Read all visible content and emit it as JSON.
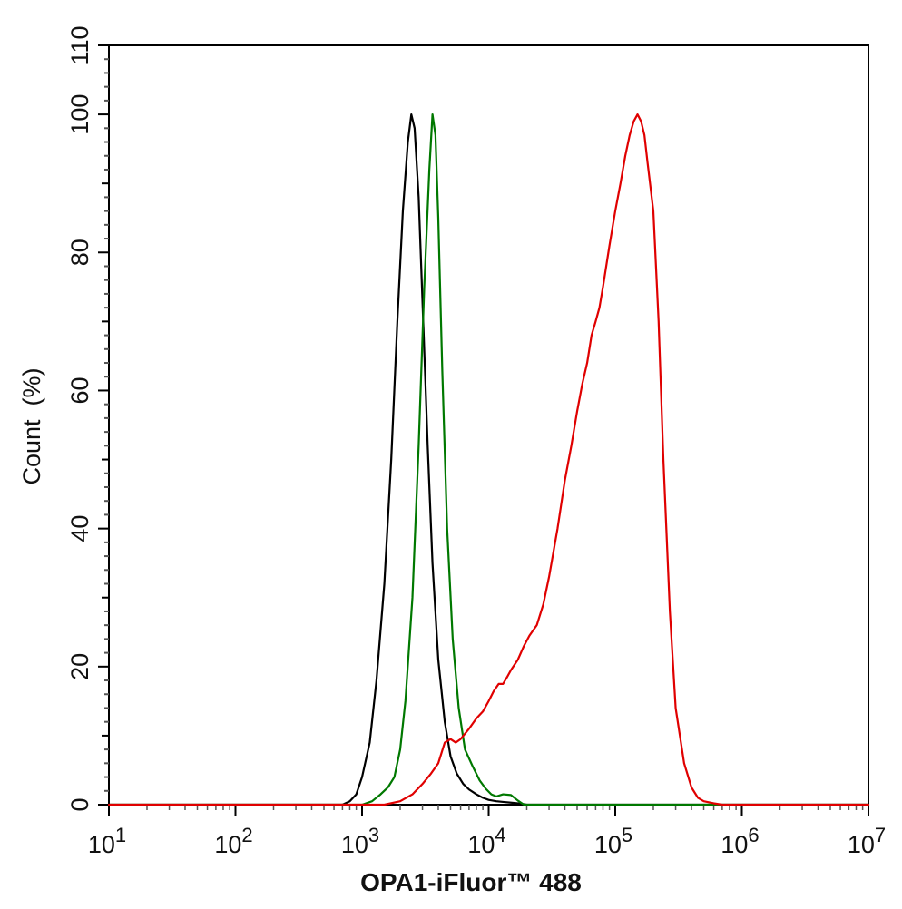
{
  "chart_data": {
    "type": "line",
    "xlabel": "OPA1-iFluor™ 488",
    "ylabel": "Count  (%)",
    "xscale": "log",
    "xlim": [
      10,
      10000000
    ],
    "ylim": [
      0,
      110
    ],
    "grid": false,
    "x_ticks": [
      {
        "base": "10",
        "exp": "1",
        "value": 10
      },
      {
        "base": "10",
        "exp": "2",
        "value": 100
      },
      {
        "base": "10",
        "exp": "3",
        "value": 1000
      },
      {
        "base": "10",
        "exp": "4",
        "value": 10000
      },
      {
        "base": "10",
        "exp": "5",
        "value": 100000
      },
      {
        "base": "10",
        "exp": "6",
        "value": 1000000
      },
      {
        "base": "10",
        "exp": "7",
        "value": 10000000
      }
    ],
    "y_ticks": [
      "0",
      "20",
      "40",
      "60",
      "80",
      "100",
      "110"
    ],
    "y_tick_values": [
      0,
      20,
      40,
      60,
      80,
      100,
      110
    ],
    "series": [
      {
        "color": "#000000",
        "x": [
          10,
          700,
          800,
          900,
          1000,
          1150,
          1300,
          1500,
          1700,
          1900,
          2100,
          2300,
          2450,
          2600,
          2800,
          3000,
          3300,
          3600,
          4000,
          4500,
          5000,
          5600,
          6300,
          7000,
          8000,
          9000,
          10000,
          11500,
          13000,
          15000,
          17000,
          20000,
          10000000
        ],
        "y": [
          0,
          0,
          0.5,
          1.5,
          4,
          9,
          18,
          32,
          50,
          70,
          86,
          96,
          100,
          98,
          88,
          73,
          52,
          35,
          21,
          12,
          7,
          4.5,
          3,
          2.2,
          1.5,
          1,
          0.7,
          0.5,
          0.4,
          0.3,
          0.2,
          0,
          0
        ]
      },
      {
        "color": "#007800",
        "x": [
          10,
          1000,
          1200,
          1400,
          1600,
          1800,
          2000,
          2200,
          2500,
          2800,
          3100,
          3400,
          3600,
          3800,
          4000,
          4300,
          4700,
          5200,
          5800,
          6500,
          7500,
          8500,
          9500,
          10500,
          11500,
          13000,
          15000,
          17000,
          19000,
          10000000
        ],
        "y": [
          0,
          0,
          0.5,
          1.5,
          2.5,
          4,
          8,
          15,
          30,
          52,
          75,
          92,
          100,
          97,
          85,
          63,
          40,
          24,
          14,
          8,
          5.5,
          3.5,
          2.3,
          1.5,
          1.2,
          1.5,
          1.4,
          0.6,
          0,
          0
        ]
      },
      {
        "color": "#e00000",
        "x": [
          10,
          1500,
          2000,
          2500,
          3000,
          3500,
          4000,
          4500,
          5000,
          5500,
          6000,
          7000,
          8000,
          9000,
          10000,
          11000,
          12000,
          13000,
          14000,
          15000,
          17000,
          19000,
          21000,
          24000,
          27000,
          30000,
          35000,
          40000,
          45000,
          50000,
          55000,
          60000,
          65000,
          70000,
          75000,
          80000,
          90000,
          100000,
          110000,
          120000,
          130000,
          140000,
          150000,
          160000,
          170000,
          180000,
          200000,
          220000,
          240000,
          270000,
          300000,
          350000,
          400000,
          450000,
          500000,
          600000,
          700000,
          10000000
        ],
        "y": [
          0,
          0,
          0.5,
          1.5,
          3,
          4.5,
          6,
          9,
          9.5,
          9,
          9.5,
          11,
          12.5,
          13.5,
          15,
          16.5,
          17.5,
          17.5,
          18.5,
          19.5,
          21,
          23,
          24.5,
          26,
          29,
          33,
          40,
          47,
          52,
          57,
          61,
          64,
          68,
          70,
          72,
          75,
          81,
          86,
          90,
          94,
          97,
          99,
          100,
          99,
          97,
          93,
          86,
          70,
          50,
          28,
          14,
          6,
          2.5,
          1,
          0.5,
          0.2,
          0,
          0
        ]
      }
    ]
  }
}
